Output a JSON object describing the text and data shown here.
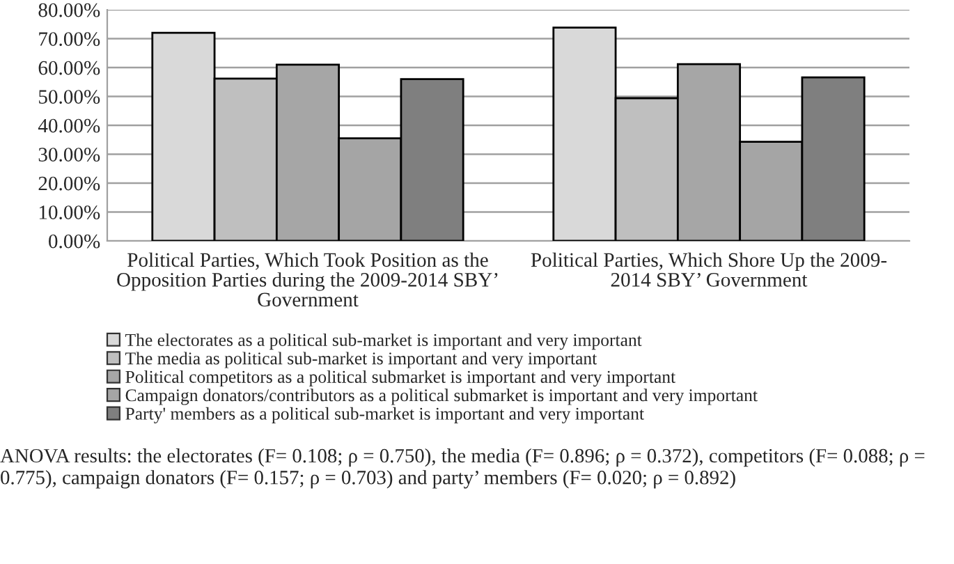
{
  "chart_data": {
    "type": "bar",
    "categories": [
      "Political Parties, Which Took Position as the\nOpposition Parties during the 2009-2014 SBY’\nGovernment",
      "Political Parties, Which Shore Up the 2009-\n2014 SBY’ Government"
    ],
    "series": [
      {
        "name": "The electorates as a political sub-market is important and very important",
        "color": "#d9d9d9",
        "values": [
          72.0,
          73.8
        ]
      },
      {
        "name": "The media as political sub-market is important and very important",
        "color": "#bfbfbf",
        "values": [
          56.2,
          49.4
        ]
      },
      {
        "name": "Political competitors as a political submarket is important and very important",
        "color": "#a6a6a6",
        "values": [
          61.0,
          61.2
        ]
      },
      {
        "name": "Campaign donators/contributors as a political submarket is important and very important",
        "color": "#a5a5a5",
        "values": [
          35.5,
          34.3
        ]
      },
      {
        "name": "Party' members as a political sub-market is important and very important",
        "color": "#7f7f7f",
        "values": [
          56.0,
          56.6
        ]
      }
    ],
    "ylim": [
      0,
      80
    ],
    "yticks": [
      {
        "value": 0,
        "label": "0.00%"
      },
      {
        "value": 10,
        "label": "10.00%"
      },
      {
        "value": 20,
        "label": "20.00%"
      },
      {
        "value": 30,
        "label": "30.00%"
      },
      {
        "value": 40,
        "label": "40.00%"
      },
      {
        "value": 50,
        "label": "50.00%"
      },
      {
        "value": 60,
        "label": "60.00%"
      },
      {
        "value": 70,
        "label": "70.00%"
      },
      {
        "value": 80,
        "label": "80.00%"
      }
    ],
    "grid": "y",
    "legend": "bottom",
    "annotations": [
      "ANOVA results: the electorates (F= 0.108; ρ = 0.750), the media (F= 0.896; ρ = 0.372), competitors (F= 0.088; ρ = 0.775), campaign donators (F= 0.157; ρ = 0.703) and party’ members (F= 0.020; ρ = 0.892)"
    ]
  }
}
